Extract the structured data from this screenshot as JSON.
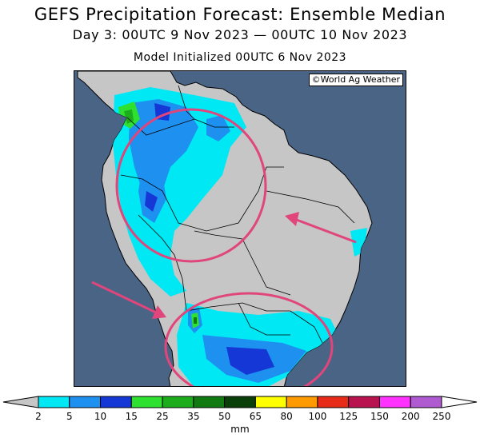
{
  "header": {
    "title": "GEFS Precipitation Forecast: Ensemble Median",
    "period": "Day 3: 00UTC 9 Nov 2023 — 00UTC 10 Nov 2023",
    "init": "Model Initialized 00UTC 6 Nov 2023"
  },
  "map": {
    "credit": "©World Ag Weather",
    "ocean_color": "#4a6485",
    "land_color": "#c6c6c6",
    "highlight_color": "#e0457b"
  },
  "legend": {
    "units": "mm",
    "ticks": [
      "2",
      "5",
      "10",
      "15",
      "25",
      "35",
      "50",
      "65",
      "80",
      "100",
      "125",
      "150",
      "200",
      "250"
    ],
    "colors": [
      "#00e8f4",
      "#1e90f0",
      "#1437d6",
      "#2ee030",
      "#1cac1c",
      "#117a11",
      "#0a3f0a",
      "#ffff00",
      "#ff9a00",
      "#e82a18",
      "#b8124f",
      "#ff32ff",
      "#b05ad2"
    ]
  }
}
